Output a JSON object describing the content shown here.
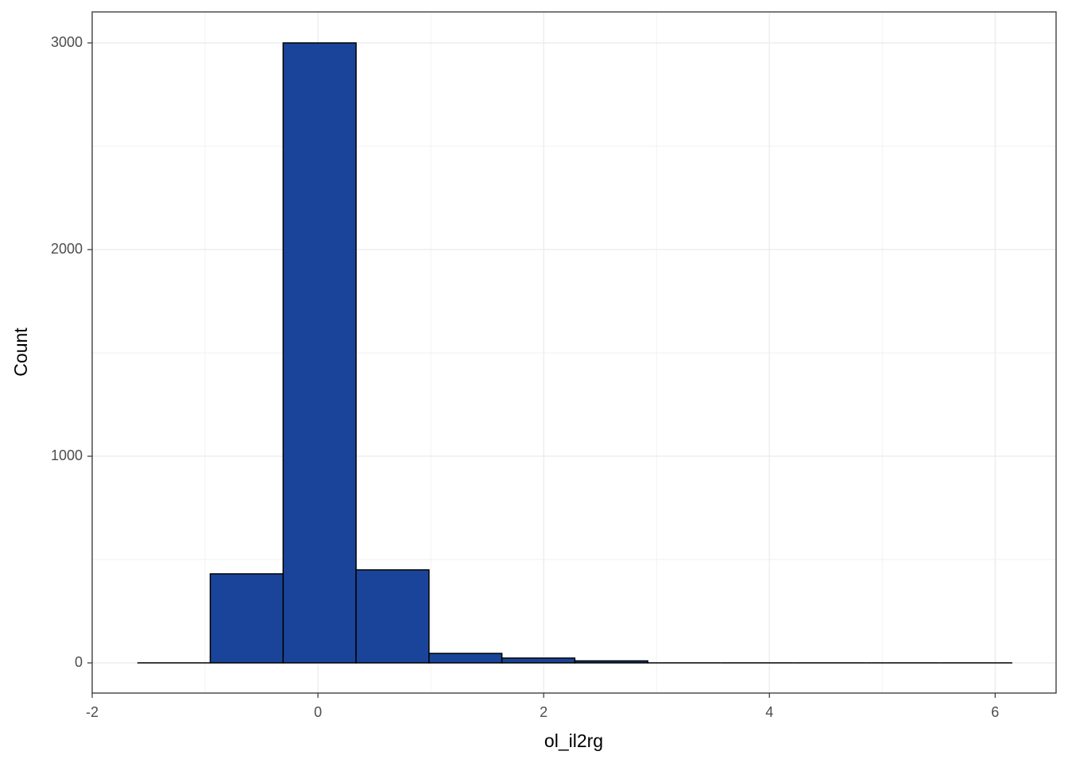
{
  "chart_data": {
    "type": "histogram",
    "x_label": "ol_il2rg",
    "y_label": "Count",
    "bins": [
      -1.6,
      -0.954,
      -0.308,
      0.338,
      0.984,
      1.63,
      2.276,
      2.922,
      3.568,
      4.214,
      4.86,
      5.506,
      6.152
    ],
    "values": [
      0,
      431,
      3000,
      450,
      46,
      23,
      10,
      0,
      0,
      0,
      0,
      0
    ],
    "color": "#1a4499",
    "xlim": [
      -2,
      6.54
    ],
    "xticks": [
      -2,
      0,
      2,
      4,
      6
    ],
    "ylim": [
      -146,
      3150
    ],
    "yticks": [
      0,
      1000,
      2000,
      3000
    ],
    "grid": true
  }
}
